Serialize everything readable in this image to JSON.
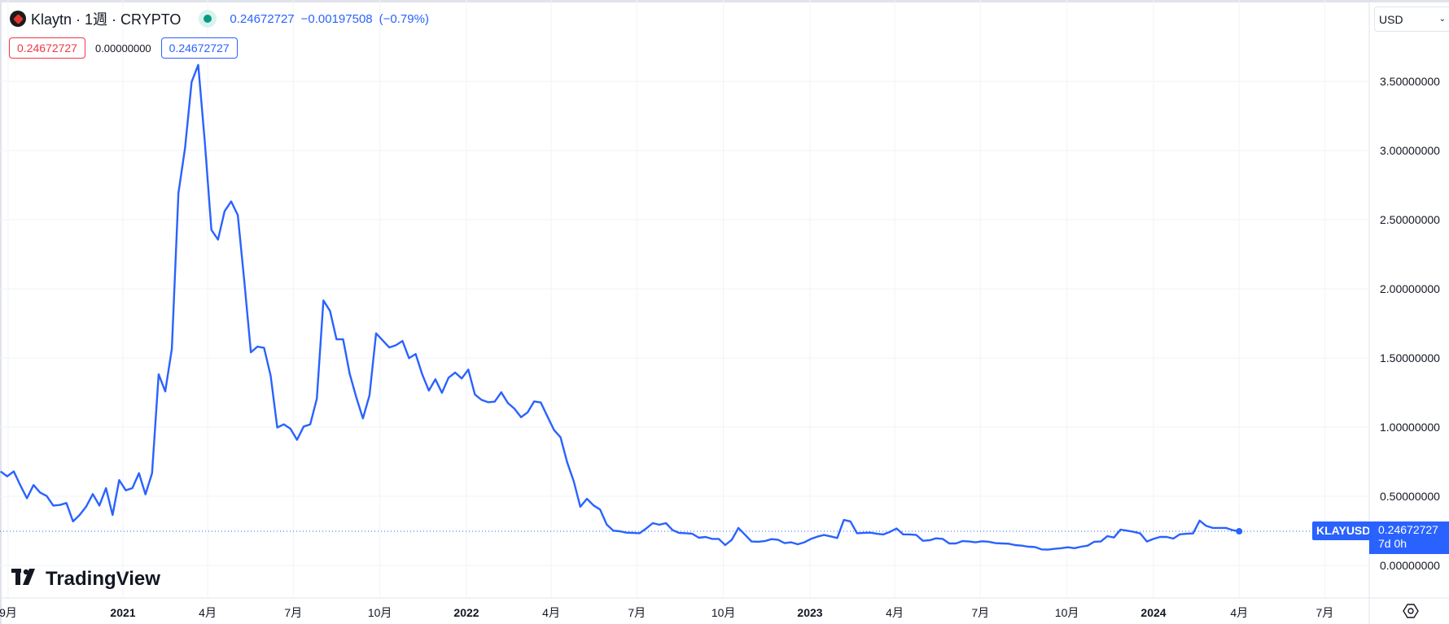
{
  "header": {
    "symbol_title": "Klaytn · 1週 · CRYPTO",
    "last_price": "0.24672727",
    "change": "−0.00197508",
    "change_pct": "(−0.79%)",
    "market_status": "open",
    "status_color": "#089981"
  },
  "legend": {
    "red_value": "0.24672727",
    "mid_value": "0.00000000",
    "blue_value": "0.24672727"
  },
  "currency_select": {
    "value": "USD"
  },
  "branding": {
    "logo_text": "TradingView"
  },
  "price_label": {
    "symbol": "KLAYUSD",
    "price": "0.24672727",
    "countdown": "7d 0h"
  },
  "colors": {
    "line": "#2962ff",
    "grid": "#f0f3fa",
    "down": "#f23645"
  },
  "icons": {
    "settings": "gear-icon",
    "dropdown": "chevron-down-icon",
    "logo": "klaytn-logo-icon"
  },
  "chart_data": {
    "type": "line",
    "ylim": [
      -0.1,
      3.65
    ],
    "grid": true,
    "y_ticks": [
      "3.50000000",
      "3.00000000",
      "2.50000000",
      "2.00000000",
      "1.50000000",
      "1.00000000",
      "0.50000000",
      "0.00000000"
    ],
    "y_tick_values": [
      3.5,
      3.0,
      2.5,
      2.0,
      1.5,
      1.0,
      0.5,
      0.0
    ],
    "x_ticks": [
      {
        "date": "2020-09-01",
        "label": "9月",
        "bold": false
      },
      {
        "date": "2021-01-01",
        "label": "2021",
        "bold": true
      },
      {
        "date": "2021-04-01",
        "label": "4月",
        "bold": false
      },
      {
        "date": "2021-07-01",
        "label": "7月",
        "bold": false
      },
      {
        "date": "2021-10-01",
        "label": "10月",
        "bold": false
      },
      {
        "date": "2022-01-01",
        "label": "2022",
        "bold": true
      },
      {
        "date": "2022-04-01",
        "label": "4月",
        "bold": false
      },
      {
        "date": "2022-07-01",
        "label": "7月",
        "bold": false
      },
      {
        "date": "2022-10-01",
        "label": "10月",
        "bold": false
      },
      {
        "date": "2023-01-01",
        "label": "2023",
        "bold": true
      },
      {
        "date": "2023-04-01",
        "label": "4月",
        "bold": false
      },
      {
        "date": "2023-07-01",
        "label": "7月",
        "bold": false
      },
      {
        "date": "2023-10-01",
        "label": "10月",
        "bold": false
      },
      {
        "date": "2024-01-01",
        "label": "2024",
        "bold": true
      },
      {
        "date": "2024-04-01",
        "label": "4月",
        "bold": false
      },
      {
        "date": "2024-07-01",
        "label": "7月",
        "bold": false
      }
    ],
    "x": [
      "2020-08-24",
      "2020-08-31",
      "2020-09-07",
      "2020-09-14",
      "2020-09-21",
      "2020-09-28",
      "2020-10-05",
      "2020-10-12",
      "2020-10-19",
      "2020-10-26",
      "2020-11-02",
      "2020-11-09",
      "2020-11-16",
      "2020-11-23",
      "2020-11-30",
      "2020-12-07",
      "2020-12-14",
      "2020-12-21",
      "2020-12-28",
      "2021-01-04",
      "2021-01-11",
      "2021-01-18",
      "2021-01-25",
      "2021-02-01",
      "2021-02-08",
      "2021-02-15",
      "2021-02-22",
      "2021-03-01",
      "2021-03-08",
      "2021-03-15",
      "2021-03-22",
      "2021-03-29",
      "2021-04-05",
      "2021-04-12",
      "2021-04-19",
      "2021-04-26",
      "2021-05-03",
      "2021-05-10",
      "2021-05-17",
      "2021-05-24",
      "2021-05-31",
      "2021-06-07",
      "2021-06-14",
      "2021-06-21",
      "2021-06-28",
      "2021-07-05",
      "2021-07-12",
      "2021-07-19",
      "2021-07-26",
      "2021-08-02",
      "2021-08-09",
      "2021-08-16",
      "2021-08-23",
      "2021-08-30",
      "2021-09-06",
      "2021-09-13",
      "2021-09-20",
      "2021-09-27",
      "2021-10-04",
      "2021-10-11",
      "2021-10-18",
      "2021-10-25",
      "2021-11-01",
      "2021-11-08",
      "2021-11-15",
      "2021-11-22",
      "2021-11-29",
      "2021-12-06",
      "2021-12-13",
      "2021-12-20",
      "2021-12-27",
      "2022-01-03",
      "2022-01-10",
      "2022-01-17",
      "2022-01-24",
      "2022-01-31",
      "2022-02-07",
      "2022-02-14",
      "2022-02-21",
      "2022-02-28",
      "2022-03-07",
      "2022-03-14",
      "2022-03-21",
      "2022-03-28",
      "2022-04-04",
      "2022-04-11",
      "2022-04-18",
      "2022-04-25",
      "2022-05-02",
      "2022-05-09",
      "2022-05-16",
      "2022-05-23",
      "2022-05-30",
      "2022-06-06",
      "2022-06-13",
      "2022-06-20",
      "2022-06-27",
      "2022-07-04",
      "2022-07-11",
      "2022-07-18",
      "2022-07-25",
      "2022-08-01",
      "2022-08-08",
      "2022-08-15",
      "2022-08-22",
      "2022-08-29",
      "2022-09-05",
      "2022-09-12",
      "2022-09-19",
      "2022-09-26",
      "2022-10-03",
      "2022-10-10",
      "2022-10-17",
      "2022-10-24",
      "2022-10-31",
      "2022-11-07",
      "2022-11-14",
      "2022-11-21",
      "2022-11-28",
      "2022-12-05",
      "2022-12-12",
      "2022-12-19",
      "2022-12-26",
      "2023-01-02",
      "2023-01-09",
      "2023-01-16",
      "2023-01-23",
      "2023-01-30",
      "2023-02-06",
      "2023-02-13",
      "2023-02-20",
      "2023-02-27",
      "2023-03-06",
      "2023-03-13",
      "2023-03-20",
      "2023-03-27",
      "2023-04-03",
      "2023-04-10",
      "2023-04-17",
      "2023-04-24",
      "2023-05-01",
      "2023-05-08",
      "2023-05-15",
      "2023-05-22",
      "2023-05-29",
      "2023-06-05",
      "2023-06-12",
      "2023-06-19",
      "2023-06-26",
      "2023-07-03",
      "2023-07-10",
      "2023-07-17",
      "2023-07-24",
      "2023-07-31",
      "2023-08-07",
      "2023-08-14",
      "2023-08-21",
      "2023-08-28",
      "2023-09-04",
      "2023-09-11",
      "2023-09-18",
      "2023-09-25",
      "2023-10-02",
      "2023-10-09",
      "2023-10-16",
      "2023-10-23",
      "2023-10-30",
      "2023-11-06",
      "2023-11-13",
      "2023-11-20",
      "2023-11-27",
      "2023-12-04",
      "2023-12-11",
      "2023-12-18",
      "2023-12-25",
      "2024-01-01",
      "2024-01-08",
      "2024-01-15",
      "2024-01-22",
      "2024-01-29",
      "2024-02-05",
      "2024-02-12",
      "2024-02-19",
      "2024-02-26",
      "2024-03-04",
      "2024-03-11",
      "2024-03-18",
      "2024-03-25",
      "2024-04-01"
    ],
    "y": [
      0.68,
      0.644,
      0.68,
      0.579,
      0.485,
      0.581,
      0.527,
      0.502,
      0.433,
      0.437,
      0.451,
      0.318,
      0.365,
      0.426,
      0.516,
      0.433,
      0.559,
      0.365,
      0.617,
      0.543,
      0.559,
      0.667,
      0.514,
      0.667,
      1.382,
      1.258,
      1.566,
      2.693,
      3.017,
      3.496,
      3.619,
      3.062,
      2.426,
      2.356,
      2.561,
      2.632,
      2.533,
      2.056,
      1.541,
      1.582,
      1.573,
      1.371,
      0.997,
      1.02,
      0.988,
      0.908,
      1.004,
      1.02,
      1.205,
      1.916,
      1.84,
      1.635,
      1.635,
      1.385,
      1.215,
      1.063,
      1.23,
      1.678,
      1.627,
      1.576,
      1.592,
      1.623,
      1.498,
      1.529,
      1.381,
      1.264,
      1.346,
      1.248,
      1.357,
      1.395,
      1.352,
      1.416,
      1.236,
      1.197,
      1.18,
      1.184,
      1.252,
      1.174,
      1.133,
      1.072,
      1.107,
      1.186,
      1.178,
      1.078,
      0.98,
      0.926,
      0.746,
      0.609,
      0.424,
      0.482,
      0.434,
      0.404,
      0.296,
      0.251,
      0.247,
      0.237,
      0.235,
      0.233,
      0.267,
      0.306,
      0.294,
      0.306,
      0.255,
      0.235,
      0.233,
      0.229,
      0.2,
      0.206,
      0.192,
      0.192,
      0.147,
      0.186,
      0.271,
      0.222,
      0.173,
      0.171,
      0.176,
      0.19,
      0.186,
      0.161,
      0.167,
      0.153,
      0.167,
      0.192,
      0.208,
      0.22,
      0.21,
      0.198,
      0.329,
      0.318,
      0.233,
      0.235,
      0.237,
      0.229,
      0.224,
      0.243,
      0.267,
      0.225,
      0.224,
      0.22,
      0.178,
      0.182,
      0.196,
      0.192,
      0.159,
      0.159,
      0.176,
      0.173,
      0.167,
      0.175,
      0.171,
      0.161,
      0.159,
      0.157,
      0.147,
      0.143,
      0.135,
      0.133,
      0.116,
      0.114,
      0.12,
      0.125,
      0.131,
      0.125,
      0.135,
      0.143,
      0.171,
      0.173,
      0.212,
      0.202,
      0.259,
      0.251,
      0.243,
      0.231,
      0.173,
      0.192,
      0.206,
      0.206,
      0.194,
      0.225,
      0.229,
      0.231,
      0.324,
      0.286,
      0.271,
      0.271,
      0.271,
      0.255,
      0.2467
    ],
    "last_value": 0.24672727
  }
}
